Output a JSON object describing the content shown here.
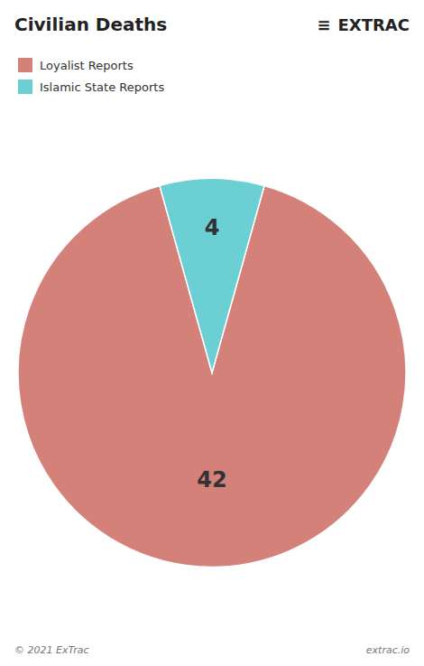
{
  "chart_data": {
    "type": "pie",
    "title": "Civilian Deaths",
    "categories": [
      "Loyalist Reports",
      "Islamic State Reports"
    ],
    "values": [
      42,
      4
    ],
    "colors": [
      "#d4817a",
      "#6bcfd4"
    ],
    "legend": "top-left",
    "data_labels": true,
    "annotations": [
      "≡",
      "EXTRAC",
      "© 2021 ExTrac",
      "extrac.io"
    ]
  }
}
